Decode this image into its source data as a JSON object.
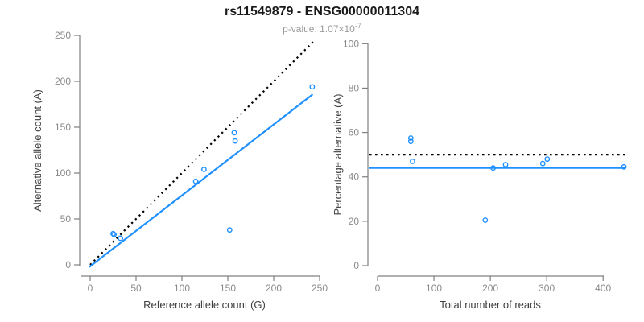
{
  "header": {
    "title": "rs11549879 - ENSG00000011304",
    "subtitle_prefix": "p-value: 1.07×10",
    "subtitle_exponent": "-7"
  },
  "colors": {
    "point_blue": "#1e90ff",
    "line_blue": "#1e90ff",
    "reference_black": "#000000",
    "axis_line": "#808080",
    "tick_label": "#8a8a8a",
    "axis_title": "#404040",
    "title_text": "#1a1a1a",
    "subtitle_text": "#9a9a9a"
  },
  "chart_data": [
    {
      "type": "scatter",
      "name": "allele-count-scatter",
      "title": "",
      "xlabel": "Reference allele count (G)",
      "ylabel": "Alternative allele count (A)",
      "xlim": [
        0,
        250
      ],
      "ylim": [
        0,
        250
      ],
      "grid": false,
      "legend": false,
      "xticks": [
        0,
        50,
        100,
        150,
        200,
        250
      ],
      "yticks": [
        0,
        50,
        100,
        150,
        200,
        250
      ],
      "points": [
        [
          25,
          34
        ],
        [
          26,
          33
        ],
        [
          33,
          29
        ],
        [
          115,
          91
        ],
        [
          124,
          104
        ],
        [
          152,
          38
        ],
        [
          157,
          144
        ],
        [
          158,
          135
        ],
        [
          242,
          194
        ]
      ],
      "lines": [
        {
          "role": "identity-line",
          "style": "dotted",
          "color": "#000000",
          "x1": 0,
          "y1": 0,
          "x2": 243,
          "y2": 243
        },
        {
          "role": "fit-line",
          "style": "solid",
          "color": "#1e90ff",
          "x1": -1,
          "y1": -2.4,
          "x2": 242.5,
          "y2": 185.8
        }
      ]
    },
    {
      "type": "scatter",
      "name": "percentage-scatter",
      "title": "",
      "xlabel": "Total number of reads",
      "ylabel": "Percentage alternative (A)",
      "xlim": [
        0,
        440
      ],
      "ylim": [
        0,
        100
      ],
      "grid": false,
      "legend": false,
      "xticks": [
        0,
        100,
        200,
        300,
        400
      ],
      "yticks": [
        0,
        20,
        40,
        60,
        80,
        100
      ],
      "points": [
        [
          59,
          57.5
        ],
        [
          59,
          56
        ],
        [
          62,
          47
        ],
        [
          191,
          20.5
        ],
        [
          205,
          44
        ],
        [
          227,
          45.5
        ],
        [
          293,
          46
        ],
        [
          301,
          48
        ],
        [
          437,
          44.5
        ]
      ],
      "hlines": [
        {
          "role": "expected-50pct-line",
          "style": "dotted",
          "color": "#000000",
          "y": 50
        },
        {
          "role": "mean-percentage-line",
          "style": "solid",
          "color": "#1e90ff",
          "y": 44
        }
      ]
    }
  ]
}
